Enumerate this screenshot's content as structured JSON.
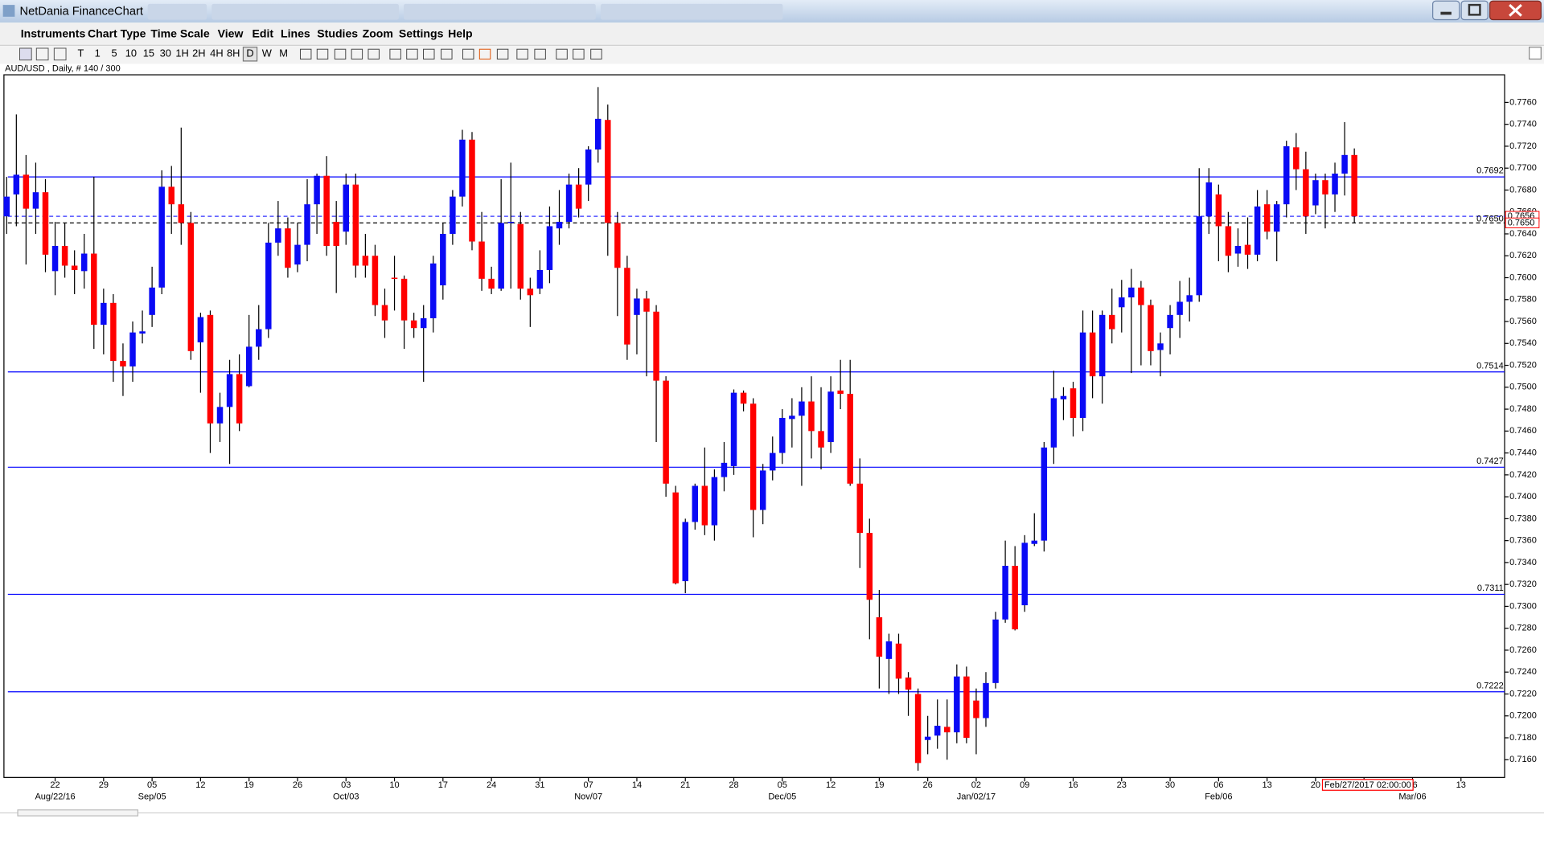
{
  "window": {
    "title": "NetDania FinanceChart"
  },
  "menu": [
    "Instruments",
    "Chart Type",
    "Time Scale",
    "View",
    "Edit",
    "Lines",
    "Studies",
    "Zoom",
    "Settings",
    "Help"
  ],
  "toolbar": [
    "T",
    "1",
    "5",
    "10",
    "15",
    "30",
    "1H",
    "2H",
    "4H",
    "8H",
    "D",
    "W",
    "M"
  ],
  "chart_data": {
    "type": "candlestick",
    "title": "AUD/USD , Daily, # 140 / 300",
    "up_color": "#0a0af5",
    "down_color": "#ff0000",
    "wick_color": "#000000",
    "level_color": "#0000ff",
    "xlim": [
      -0.28,
      154.5
    ],
    "ylim": [
      0.71438,
      0.77852
    ],
    "xticks": [
      {
        "value": 5,
        "label": "22"
      },
      {
        "value": 10,
        "label": "29"
      },
      {
        "value": 15,
        "label": "05"
      },
      {
        "value": 20,
        "label": "12"
      },
      {
        "value": 25,
        "label": "19"
      },
      {
        "value": 30,
        "label": "26"
      },
      {
        "value": 35,
        "label": "03"
      },
      {
        "value": 40,
        "label": "10"
      },
      {
        "value": 45,
        "label": "17"
      },
      {
        "value": 50,
        "label": "24"
      },
      {
        "value": 55,
        "label": "31"
      },
      {
        "value": 60,
        "label": "07"
      },
      {
        "value": 65,
        "label": "14"
      },
      {
        "value": 70,
        "label": "21"
      },
      {
        "value": 75,
        "label": "28"
      },
      {
        "value": 80,
        "label": "05"
      },
      {
        "value": 85,
        "label": "12"
      },
      {
        "value": 90,
        "label": "19"
      },
      {
        "value": 95,
        "label": "26"
      },
      {
        "value": 100,
        "label": "02"
      },
      {
        "value": 105,
        "label": "09"
      },
      {
        "value": 110,
        "label": "16"
      },
      {
        "value": 115,
        "label": "23"
      },
      {
        "value": 120,
        "label": "30"
      },
      {
        "value": 125,
        "label": "06"
      },
      {
        "value": 130,
        "label": "13"
      },
      {
        "value": 135,
        "label": "20"
      },
      {
        "value": 140,
        "label": "27"
      },
      {
        "value": 145,
        "label": "06"
      },
      {
        "value": 150,
        "label": "13"
      }
    ],
    "month_ticks": [
      {
        "value": 5,
        "label": "Aug/22/16"
      },
      {
        "value": 15,
        "label": "Sep/05"
      },
      {
        "value": 35,
        "label": "Oct/03"
      },
      {
        "value": 60,
        "label": "Nov/07"
      },
      {
        "value": 80,
        "label": "Dec/05"
      },
      {
        "value": 100,
        "label": "Jan/02/17"
      },
      {
        "value": 125,
        "label": "Feb/06"
      },
      {
        "value": 145,
        "label": "Mar/06"
      }
    ],
    "yticks": [
      {
        "value": 0.716,
        "label": "0.7160"
      },
      {
        "value": 0.718,
        "label": "0.7180"
      },
      {
        "value": 0.72,
        "label": "0.7200"
      },
      {
        "value": 0.722,
        "label": "0.7220"
      },
      {
        "value": 0.724,
        "label": "0.7240"
      },
      {
        "value": 0.726,
        "label": "0.7260"
      },
      {
        "value": 0.728,
        "label": "0.7280"
      },
      {
        "value": 0.73,
        "label": "0.7300"
      },
      {
        "value": 0.732,
        "label": "0.7320"
      },
      {
        "value": 0.734,
        "label": "0.7340"
      },
      {
        "value": 0.736,
        "label": "0.7360"
      },
      {
        "value": 0.738,
        "label": "0.7380"
      },
      {
        "value": 0.74,
        "label": "0.7400"
      },
      {
        "value": 0.742,
        "label": "0.7420"
      },
      {
        "value": 0.744,
        "label": "0.7440"
      },
      {
        "value": 0.746,
        "label": "0.7460"
      },
      {
        "value": 0.748,
        "label": "0.7480"
      },
      {
        "value": 0.75,
        "label": "0.7500"
      },
      {
        "value": 0.752,
        "label": "0.7520"
      },
      {
        "value": 0.754,
        "label": "0.7540"
      },
      {
        "value": 0.756,
        "label": "0.7560"
      },
      {
        "value": 0.758,
        "label": "0.7580"
      },
      {
        "value": 0.76,
        "label": "0.7600"
      },
      {
        "value": 0.762,
        "label": "0.7620"
      },
      {
        "value": 0.764,
        "label": "0.7640"
      },
      {
        "value": 0.766,
        "label": "0.7660"
      },
      {
        "value": 0.768,
        "label": "0.7680"
      },
      {
        "value": 0.77,
        "label": "0.7700"
      },
      {
        "value": 0.772,
        "label": "0.7720"
      },
      {
        "value": 0.774,
        "label": "0.7740"
      },
      {
        "value": 0.776,
        "label": "0.7760"
      }
    ],
    "levels": [
      {
        "value": 0.7692,
        "label": "0.7692"
      },
      {
        "value": 0.7514,
        "label": "0.7514"
      },
      {
        "value": 0.7427,
        "label": "0.7427"
      },
      {
        "value": 0.7311,
        "label": "0.7311"
      },
      {
        "value": 0.7222,
        "label": "0.7222"
      }
    ],
    "price_lines": [
      {
        "value": 0.7656,
        "label": "0.7656",
        "color": "#3030ff"
      },
      {
        "value": 0.765,
        "label": "0.7650",
        "color": "#000000"
      }
    ],
    "crosshair_label": "Feb/27/2017 02:00:00",
    "open": [
      0.7656,
      0.7676,
      0.7694,
      0.7663,
      0.7678,
      0.7606,
      0.7629,
      0.7611,
      0.7606,
      0.7622,
      0.7557,
      0.7577,
      0.7524,
      0.7519,
      0.7549,
      0.7566,
      0.7591,
      0.7683,
      0.7667,
      0.765,
      0.7541,
      0.7566,
      0.7467,
      0.7482,
      0.7512,
      0.7501,
      0.7537,
      0.7553,
      0.7632,
      0.7645,
      0.7612,
      0.763,
      0.7667,
      0.7693,
      0.7651,
      0.7642,
      0.7685,
      0.762,
      0.762,
      0.7575,
      0.76,
      0.7599,
      0.7561,
      0.7554,
      0.7563,
      0.7593,
      0.764,
      0.7674,
      0.7726,
      0.7633,
      0.7599,
      0.759,
      0.765,
      0.7649,
      0.759,
      0.759,
      0.7607,
      0.7645,
      0.7651,
      0.7685,
      0.7685,
      0.7717,
      0.7744,
      0.765,
      0.7609,
      0.7566,
      0.7581,
      0.7569,
      0.7506,
      0.7404,
      0.7323,
      0.7377,
      0.741,
      0.7374,
      0.7418,
      0.7428,
      0.7495,
      0.7485,
      0.7388,
      0.7424,
      0.744,
      0.7471,
      0.7474,
      0.7487,
      0.746,
      0.745,
      0.7497,
      0.7494,
      0.7412,
      0.7367,
      0.729,
      0.7252,
      0.7266,
      0.7235,
      0.722,
      0.7178,
      0.7182,
      0.719,
      0.7185,
      0.7236,
      0.7214,
      0.7198,
      0.723,
      0.7288,
      0.7337,
      0.7301,
      0.7357,
      0.736,
      0.7445,
      0.7489,
      0.7499,
      0.7472,
      0.755,
      0.751,
      0.7566,
      0.7573,
      0.7582,
      0.7591,
      0.7575,
      0.7534,
      0.7554,
      0.7566,
      0.7578,
      0.7584,
      0.7656,
      0.7676,
      0.7647,
      0.7622,
      0.763,
      0.7621,
      0.7667,
      0.7642,
      0.7667,
      0.7719,
      0.7699,
      0.7666,
      0.7689,
      0.7676,
      0.7695,
      0.7712
    ],
    "high": [
      0.7692,
      0.7749,
      0.7712,
      0.7705,
      0.769,
      0.7651,
      0.765,
      0.7625,
      0.764,
      0.7692,
      0.759,
      0.7585,
      0.754,
      0.756,
      0.757,
      0.761,
      0.7698,
      0.7702,
      0.7737,
      0.766,
      0.7568,
      0.757,
      0.7495,
      0.7525,
      0.753,
      0.7566,
      0.7575,
      0.765,
      0.767,
      0.7655,
      0.765,
      0.769,
      0.7695,
      0.7711,
      0.767,
      0.7695,
      0.7695,
      0.764,
      0.763,
      0.759,
      0.762,
      0.7602,
      0.7568,
      0.7575,
      0.762,
      0.765,
      0.768,
      0.7735,
      0.7733,
      0.766,
      0.761,
      0.769,
      0.7705,
      0.766,
      0.76,
      0.7625,
      0.7665,
      0.768,
      0.7695,
      0.77,
      0.772,
      0.7774,
      0.7758,
      0.766,
      0.762,
      0.759,
      0.7588,
      0.7575,
      0.751,
      0.741,
      0.738,
      0.7412,
      0.7445,
      0.7425,
      0.745,
      0.7498,
      0.7497,
      0.749,
      0.743,
      0.7455,
      0.748,
      0.749,
      0.75,
      0.751,
      0.75,
      0.751,
      0.7525,
      0.7525,
      0.7435,
      0.738,
      0.7315,
      0.7275,
      0.7275,
      0.724,
      0.7225,
      0.72,
      0.7215,
      0.7215,
      0.7247,
      0.7245,
      0.7225,
      0.724,
      0.7295,
      0.736,
      0.7355,
      0.7365,
      0.7385,
      0.745,
      0.7515,
      0.75,
      0.7505,
      0.757,
      0.757,
      0.757,
      0.759,
      0.7598,
      0.7608,
      0.7597,
      0.758,
      0.755,
      0.7575,
      0.7597,
      0.76,
      0.77,
      0.77,
      0.7685,
      0.766,
      0.7645,
      0.7655,
      0.768,
      0.768,
      0.767,
      0.7725,
      0.7732,
      0.7715,
      0.7695,
      0.7695,
      0.7705,
      0.7742,
      0.7718
    ],
    "low": [
      0.764,
      0.7647,
      0.7612,
      0.764,
      0.7605,
      0.7584,
      0.76,
      0.7585,
      0.759,
      0.7535,
      0.753,
      0.7505,
      0.7492,
      0.7505,
      0.754,
      0.7555,
      0.7585,
      0.764,
      0.763,
      0.7525,
      0.7495,
      0.744,
      0.745,
      0.743,
      0.746,
      0.75,
      0.7525,
      0.7545,
      0.762,
      0.76,
      0.7605,
      0.7615,
      0.764,
      0.762,
      0.7586,
      0.763,
      0.76,
      0.76,
      0.7565,
      0.7545,
      0.757,
      0.7535,
      0.7545,
      0.7505,
      0.755,
      0.758,
      0.763,
      0.7665,
      0.7625,
      0.7588,
      0.7585,
      0.7588,
      0.759,
      0.758,
      0.7555,
      0.7585,
      0.7595,
      0.763,
      0.7645,
      0.7655,
      0.767,
      0.7705,
      0.762,
      0.7565,
      0.7525,
      0.753,
      0.751,
      0.745,
      0.74,
      0.732,
      0.7312,
      0.737,
      0.7365,
      0.736,
      0.7405,
      0.742,
      0.7478,
      0.7363,
      0.7375,
      0.7415,
      0.743,
      0.7445,
      0.741,
      0.7435,
      0.7425,
      0.744,
      0.748,
      0.741,
      0.7335,
      0.727,
      0.7225,
      0.722,
      0.722,
      0.72,
      0.715,
      0.7165,
      0.717,
      0.716,
      0.7175,
      0.7175,
      0.7165,
      0.719,
      0.7225,
      0.7285,
      0.7278,
      0.7295,
      0.7355,
      0.735,
      0.743,
      0.747,
      0.7455,
      0.746,
      0.749,
      0.7485,
      0.754,
      0.755,
      0.7513,
      0.752,
      0.752,
      0.751,
      0.753,
      0.7545,
      0.756,
      0.7578,
      0.764,
      0.7615,
      0.7605,
      0.761,
      0.7608,
      0.7615,
      0.7635,
      0.7615,
      0.7655,
      0.768,
      0.764,
      0.7658,
      0.7645,
      0.766,
      0.7675,
      0.765
    ],
    "close": [
      0.7674,
      0.7694,
      0.7663,
      0.7678,
      0.7621,
      0.7629,
      0.7611,
      0.7607,
      0.7622,
      0.7557,
      0.7577,
      0.7524,
      0.7519,
      0.755,
      0.7551,
      0.7591,
      0.7683,
      0.7667,
      0.765,
      0.7533,
      0.7564,
      0.7467,
      0.7482,
      0.7512,
      0.7467,
      0.7537,
      0.7553,
      0.7632,
      0.7645,
      0.7609,
      0.763,
      0.7667,
      0.7693,
      0.7629,
      0.7629,
      0.7685,
      0.7611,
      0.7611,
      0.7575,
      0.7561,
      0.7599,
      0.7561,
      0.7554,
      0.7563,
      0.7613,
      0.764,
      0.7674,
      0.7726,
      0.7633,
      0.7599,
      0.759,
      0.765,
      0.7651,
      0.759,
      0.7584,
      0.7607,
      0.7647,
      0.7651,
      0.7685,
      0.7663,
      0.7717,
      0.7745,
      0.765,
      0.7609,
      0.7539,
      0.7581,
      0.7569,
      0.7506,
      0.7412,
      0.7321,
      0.7377,
      0.741,
      0.7374,
      0.7418,
      0.7431,
      0.7495,
      0.7485,
      0.7388,
      0.7424,
      0.744,
      0.7472,
      0.7474,
      0.7487,
      0.746,
      0.7445,
      0.7496,
      0.7494,
      0.7412,
      0.7367,
      0.7306,
      0.7254,
      0.7268,
      0.7234,
      0.7224,
      0.7157,
      0.7181,
      0.7191,
      0.7185,
      0.7236,
      0.718,
      0.7198,
      0.723,
      0.7288,
      0.7337,
      0.7279,
      0.7358,
      0.736,
      0.7445,
      0.749,
      0.7492,
      0.7472,
      0.755,
      0.751,
      0.7566,
      0.7553,
      0.7582,
      0.7591,
      0.7575,
      0.7533,
      0.754,
      0.7566,
      0.7578,
      0.7584,
      0.7656,
      0.7687,
      0.7647,
      0.762,
      0.7629,
      0.7621,
      0.7665,
      0.7642,
      0.7667,
      0.772,
      0.7699,
      0.7656,
      0.7689,
      0.7676,
      0.7695,
      0.7712,
      0.7656
    ]
  }
}
